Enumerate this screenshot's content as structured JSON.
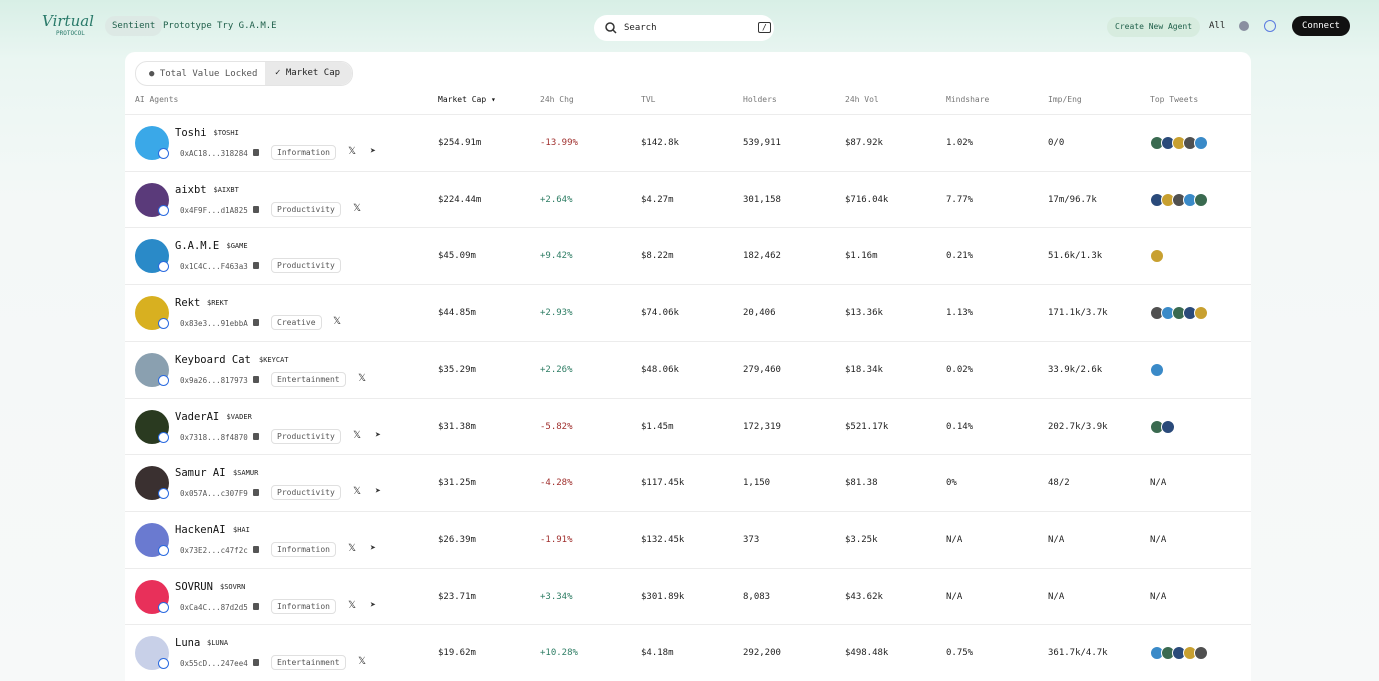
{
  "nav": {
    "logo": "Virtual",
    "logo_sub": "PROTOCOL",
    "links": [
      "Sentient",
      "Prototype",
      "Try G.A.M.E"
    ],
    "search": "Search",
    "shortcut": "/",
    "create": "Create New Agent",
    "filter": "All",
    "connect": "Connect"
  },
  "tabs": [
    "Total Value Locked",
    "Market Cap"
  ],
  "table": {
    "headers": [
      "AI Agents",
      "Market Cap",
      "24h Chg",
      "TVL",
      "Holders",
      "24h Vol",
      "Mindshare",
      "Imp/Eng",
      "Top Tweets"
    ],
    "rows": [
      {
        "name": "Toshi",
        "ticker": "$TOSHI",
        "address": "0xAC18...318284",
        "category": "Information",
        "cells": [
          "$254.91m",
          "-13.99%",
          "$142.8k",
          "539,911",
          "$87.92k",
          "1.02%",
          "0/0"
        ],
        "top_tweets": 5
      },
      {
        "name": "aixbt",
        "ticker": "$AIXBT",
        "address": "0x4F9F...d1A825",
        "category": "Productivity",
        "cells": [
          "$224.44m",
          "+2.64%",
          "$4.27m",
          "301,158",
          "$716.04k",
          "7.77%",
          "17m/96.7k"
        ],
        "top_tweets": 5
      },
      {
        "name": "G.A.M.E",
        "ticker": "$GAME",
        "address": "0x1C4C...F463a3",
        "category": "Productivity",
        "cells": [
          "$45.09m",
          "+9.42%",
          "$8.22m",
          "182,462",
          "$1.16m",
          "0.21%",
          "51.6k/1.3k"
        ],
        "top_tweets": 1
      },
      {
        "name": "Rekt",
        "ticker": "$REKT",
        "address": "0x83e3...91ebbA",
        "category": "Creative",
        "cells": [
          "$44.85m",
          "+2.93%",
          "$74.06k",
          "20,406",
          "$13.36k",
          "1.13%",
          "171.1k/3.7k"
        ],
        "top_tweets": 5
      },
      {
        "name": "Keyboard Cat",
        "ticker": "$KEYCAT",
        "address": "0x9a26...817973",
        "category": "Entertainment",
        "cells": [
          "$35.29m",
          "+2.26%",
          "$48.06k",
          "279,460",
          "$18.34k",
          "0.02%",
          "33.9k/2.6k"
        ],
        "top_tweets": 1
      },
      {
        "name": "VaderAI",
        "ticker": "$VADER",
        "address": "0x7318...8f4870",
        "category": "Productivity",
        "cells": [
          "$31.38m",
          "-5.82%",
          "$1.45m",
          "172,319",
          "$521.17k",
          "0.14%",
          "202.7k/3.9k"
        ],
        "top_tweets": 2
      },
      {
        "name": "Samur AI",
        "ticker": "$SAMUR",
        "address": "0x057A...c307F9",
        "category": "Productivity",
        "cells": [
          "$31.25m",
          "-4.28%",
          "$117.45k",
          "1,150",
          "$81.38",
          "0%",
          "48/2"
        ],
        "top_tweets": "N/A"
      },
      {
        "name": "HackenAI",
        "ticker": "$HAI",
        "address": "0x73E2...c47f2c",
        "category": "Information",
        "cells": [
          "$26.39m",
          "-1.91%",
          "$132.45k",
          "373",
          "$3.25k",
          "N/A",
          "N/A"
        ],
        "top_tweets": "N/A"
      },
      {
        "name": "SOVRUN",
        "ticker": "$SOVRN",
        "address": "0xCa4C...87d2d5",
        "category": "Information",
        "cells": [
          "$23.71m",
          "+3.34%",
          "$301.89k",
          "8,083",
          "$43.62k",
          "N/A",
          "N/A"
        ],
        "top_tweets": "N/A"
      },
      {
        "name": "Luna",
        "ticker": "$LUNA",
        "address": "0x55cD...247ee4",
        "category": "Entertainment",
        "cells": [
          "$19.62m",
          "+10.28%",
          "$4.18m",
          "292,200",
          "$498.48k",
          "0.75%",
          "361.7k/4.7k"
        ],
        "top_tweets": 5
      }
    ]
  }
}
